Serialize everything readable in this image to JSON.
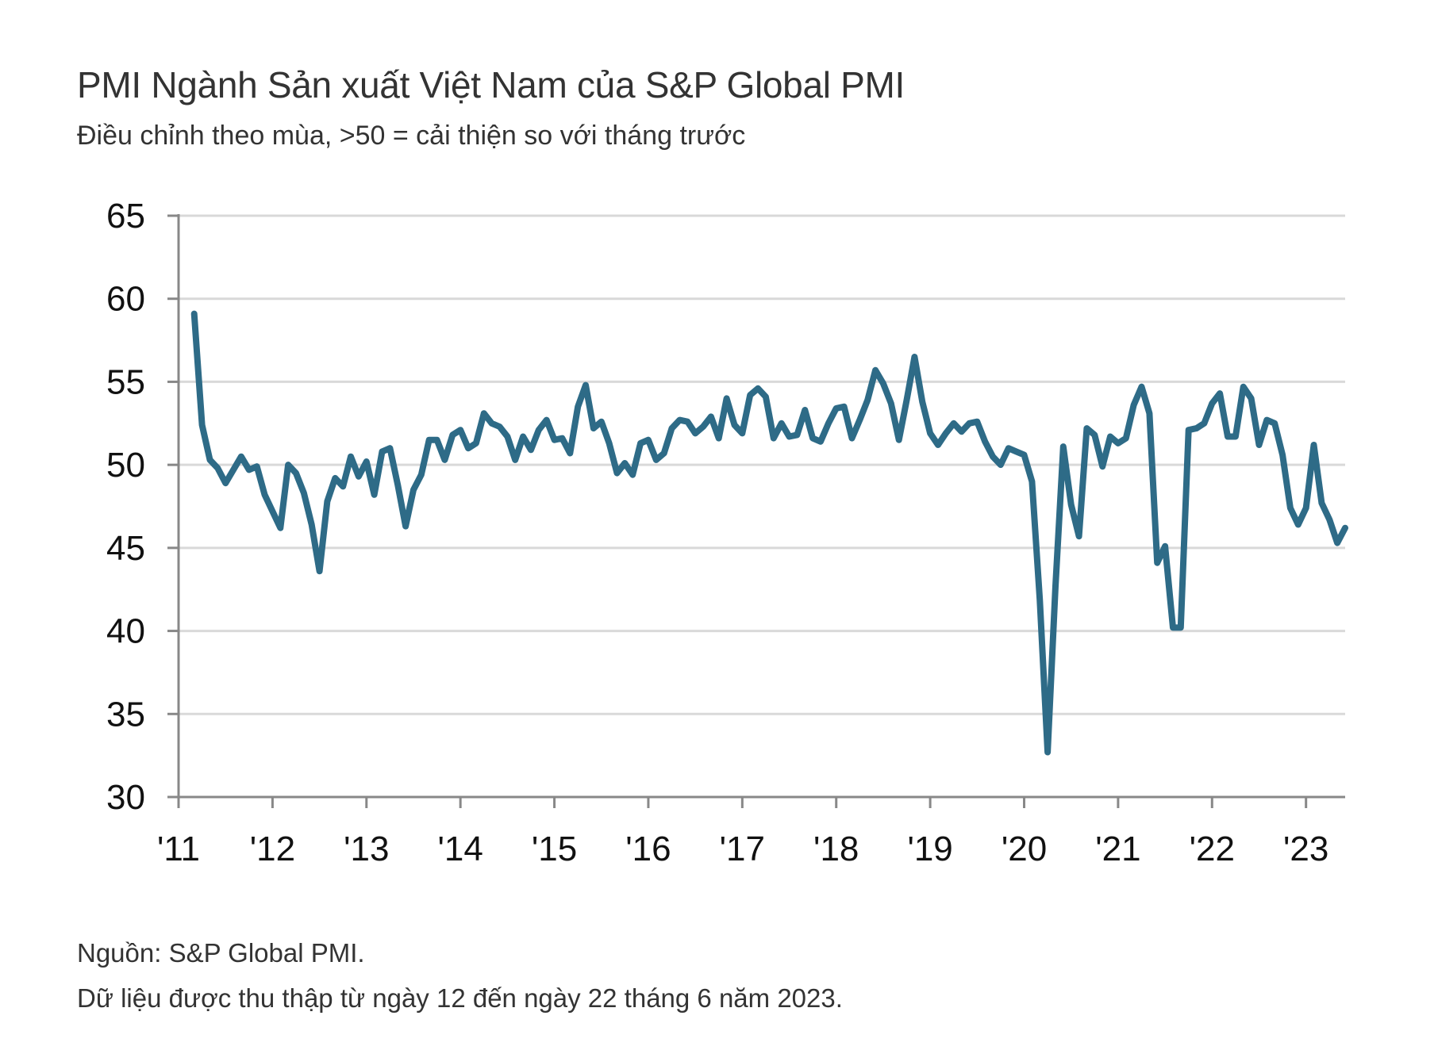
{
  "chart_data": {
    "type": "line",
    "title": "PMI Ngành Sản xuất Việt Nam của S&P Global PMI",
    "subtitle": "Điều chỉnh theo mùa, >50 = cải thiện so với tháng trước",
    "xlabel": "",
    "ylabel": "",
    "ylim": [
      30,
      65
    ],
    "yticks": [
      30,
      35,
      40,
      45,
      50,
      55,
      60,
      65
    ],
    "xtick_labels": [
      "'11",
      "'12",
      "'13",
      "'14",
      "'15",
      "'16",
      "'17",
      "'18",
      "'19",
      "'20",
      "'21",
      "'22",
      "'23"
    ],
    "x_start": "2011-03",
    "x_end": "2023-06",
    "frequency": "monthly",
    "grid": true,
    "line_color": "#2e6b87",
    "values": [
      59.1,
      52.4,
      50.3,
      49.8,
      48.9,
      49.7,
      50.5,
      49.7,
      49.9,
      48.2,
      47.2,
      46.2,
      50.0,
      49.5,
      48.3,
      46.4,
      43.6,
      47.8,
      49.2,
      48.7,
      50.5,
      49.3,
      50.2,
      48.2,
      50.8,
      51.0,
      48.8,
      46.3,
      48.5,
      49.4,
      51.5,
      51.5,
      50.3,
      51.8,
      52.1,
      51.0,
      51.3,
      53.1,
      52.5,
      52.3,
      51.7,
      50.3,
      51.7,
      50.9,
      52.1,
      52.7,
      51.5,
      51.6,
      50.7,
      53.5,
      54.8,
      52.2,
      52.6,
      51.3,
      49.5,
      50.1,
      49.4,
      51.3,
      51.5,
      50.3,
      50.7,
      52.2,
      52.7,
      52.6,
      51.9,
      52.3,
      52.9,
      51.6,
      54.0,
      52.4,
      51.9,
      54.2,
      54.6,
      54.1,
      51.6,
      52.5,
      51.7,
      51.8,
      53.3,
      51.6,
      51.4,
      52.5,
      53.4,
      53.5,
      51.6,
      52.7,
      53.9,
      55.7,
      54.9,
      53.7,
      51.5,
      53.9,
      56.5,
      53.8,
      51.9,
      51.2,
      51.9,
      52.5,
      52.0,
      52.5,
      52.6,
      51.4,
      50.5,
      50.0,
      51.0,
      50.8,
      50.6,
      49.0,
      41.9,
      32.7,
      42.7,
      51.1,
      47.6,
      45.7,
      52.2,
      51.8,
      49.9,
      51.7,
      51.3,
      51.6,
      53.6,
      54.7,
      53.1,
      44.1,
      45.1,
      40.2,
      40.2,
      52.1,
      52.2,
      52.5,
      53.7,
      54.3,
      51.7,
      51.7,
      54.7,
      54.0,
      51.2,
      52.7,
      52.5,
      50.6,
      47.4,
      46.4,
      47.4,
      51.2,
      47.7,
      46.7,
      45.3,
      46.2
    ]
  },
  "footer": {
    "source": "Nguồn: S&P Global PMI.",
    "note": "Dữ liệu được thu thập từ ngày 12 đến ngày 22 tháng 6 năm 2023."
  }
}
